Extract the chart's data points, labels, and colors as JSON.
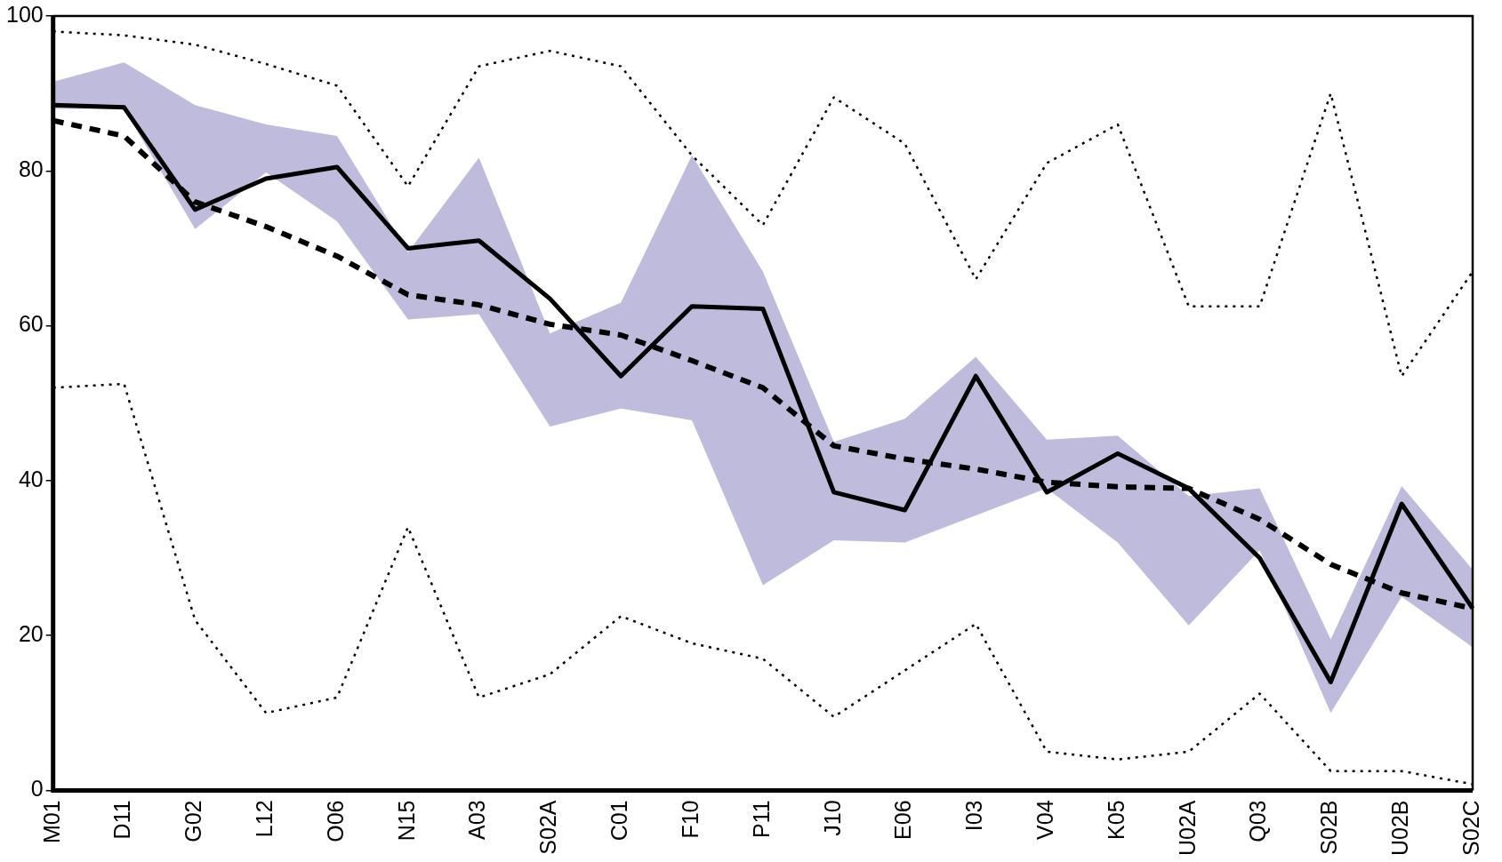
{
  "chart_data": {
    "type": "line",
    "categories": [
      "M01",
      "D11",
      "G02",
      "L12",
      "O06",
      "N15",
      "A03",
      "S02A",
      "C01",
      "F10",
      "P11",
      "J10",
      "E06",
      "I03",
      "V04",
      "K05",
      "U02A",
      "Q03",
      "S02B",
      "U02B",
      "S02C"
    ],
    "series": [
      {
        "color": "#000000",
        "line_style": "dotted",
        "values": [
          98,
          97.5,
          96.3,
          93.8,
          91,
          78,
          93.5,
          95.5,
          93.5,
          82,
          73,
          89.5,
          83.5,
          66,
          81,
          86,
          62.5,
          62.5,
          90,
          53.5,
          67
        ]
      },
      {
        "color": "#000000",
        "line_style": "dotted",
        "values": [
          52,
          52.5,
          22,
          10,
          12,
          34,
          12,
          15,
          22.5,
          19,
          17,
          9.5,
          15.5,
          21.5,
          5,
          4,
          5,
          12.5,
          2.5,
          2.5,
          0.8
        ]
      },
      {
        "color": "#000000",
        "line_style": "dashed",
        "values": [
          86.5,
          84.5,
          76,
          72.8,
          69,
          64,
          62.7,
          60.2,
          58.8,
          55.5,
          52,
          44.5,
          42.8,
          41.5,
          39.8,
          39.2,
          39,
          35,
          29.2,
          25.5,
          23.5
        ]
      },
      {
        "color": "#000000",
        "line_style": "solid",
        "values": [
          88.5,
          88.2,
          75,
          79,
          80.5,
          70,
          71,
          63.5,
          53.5,
          62.5,
          62.2,
          38.5,
          36.2,
          53.5,
          38.5,
          43.5,
          39,
          30,
          14,
          37,
          23.5
        ],
        "lower": [
          88,
          88,
          72.5,
          79.8,
          73.5,
          60.8,
          61.5,
          47,
          49.3,
          47.8,
          26.5,
          32.3,
          32,
          35.5,
          39,
          32,
          21.3,
          31,
          10,
          25,
          18.5
        ],
        "upper": [
          91.5,
          94,
          88.5,
          86,
          84.5,
          69.5,
          81.7,
          59,
          63,
          82,
          67,
          45,
          48,
          56,
          45.3,
          45.8,
          38,
          39,
          19.5,
          39.3,
          28.5
        ]
      }
    ],
    "ylim": [
      0,
      100
    ],
    "yticks": [
      0,
      20,
      40,
      60,
      80,
      100
    ],
    "grid": false,
    "legend": false,
    "marker": "none"
  }
}
